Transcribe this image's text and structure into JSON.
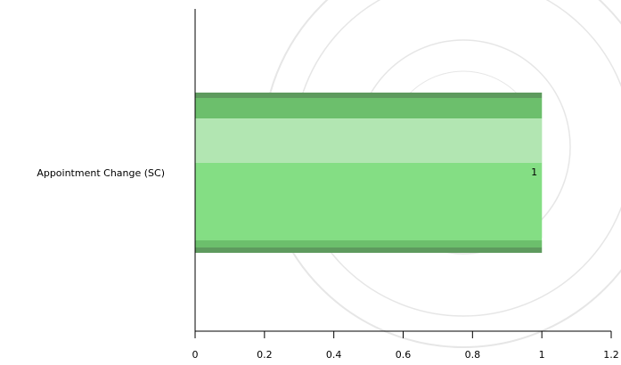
{
  "chart_data": {
    "type": "bar",
    "orientation": "horizontal",
    "categories": [
      "Appointment Change (SC)"
    ],
    "values": [
      1
    ],
    "data_labels": [
      "1"
    ],
    "xlim": [
      0,
      1.2
    ],
    "x_ticks": [
      "0",
      "0.2",
      "0.4",
      "0.6",
      "0.8",
      "1",
      "1.2"
    ],
    "title": "",
    "xlabel": "",
    "ylabel": "",
    "grid": false,
    "legend": "none"
  },
  "colors": {
    "bar_main": "#84dd84",
    "bar_dark": "#6cbf6c",
    "bar_edge": "#5e9a5e",
    "bar_highlight": "#b2e6b2",
    "watermark": "#e6e6e6",
    "axis": "#000000"
  }
}
